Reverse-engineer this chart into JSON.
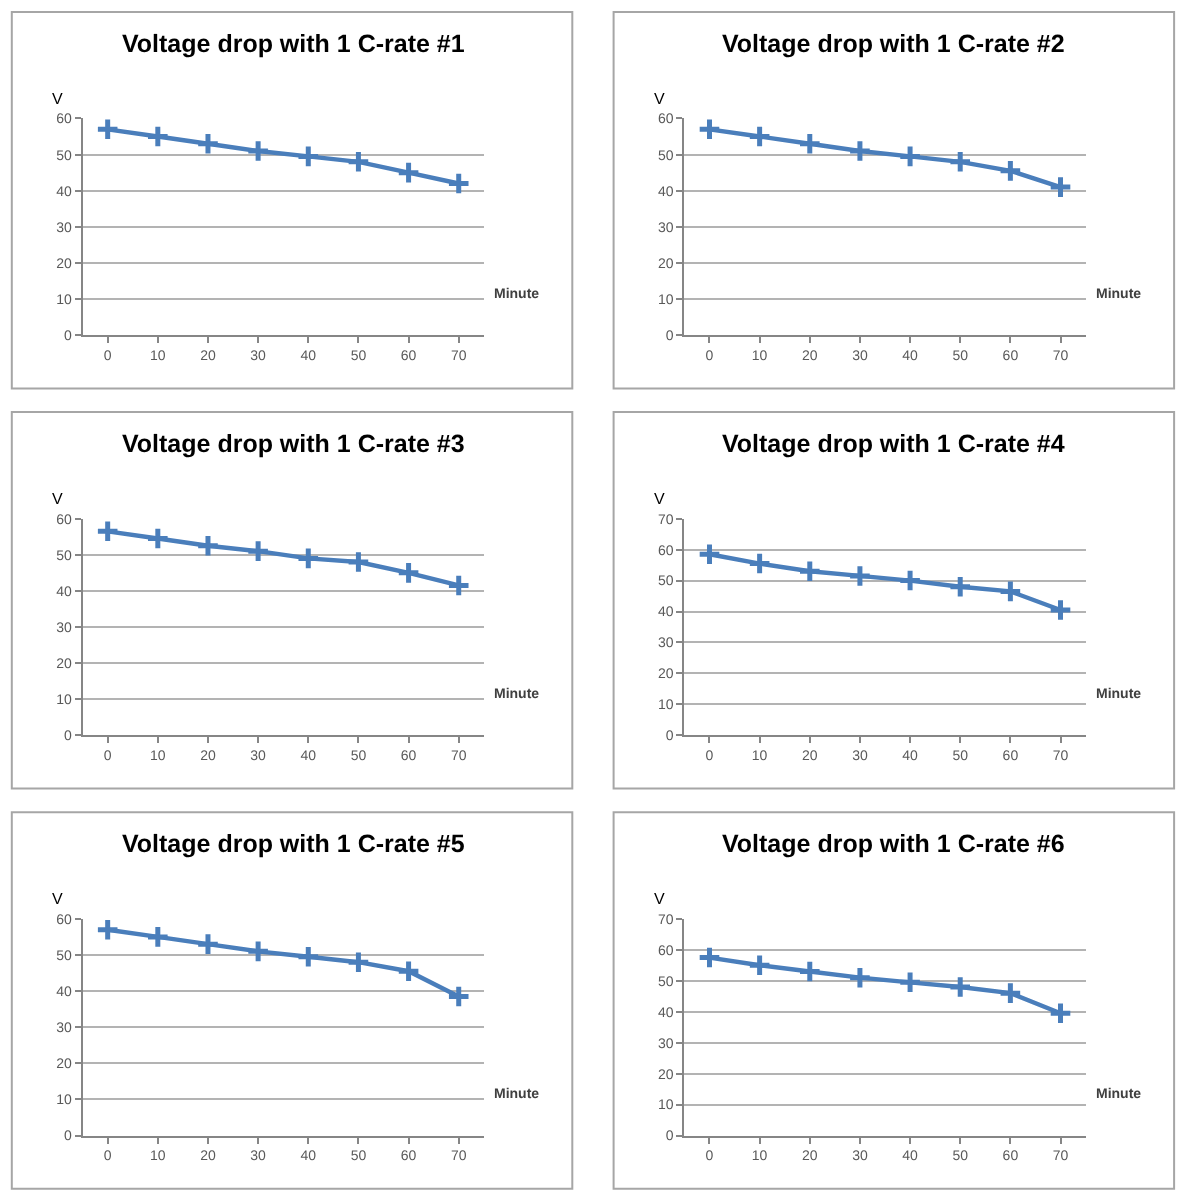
{
  "chart_data": [
    {
      "type": "line",
      "title": "Voltage drop with 1 C-rate #1",
      "xlabel": "Minute",
      "ylabel": "V",
      "categories": [
        "0",
        "10",
        "20",
        "30",
        "40",
        "50",
        "60",
        "70"
      ],
      "series": [
        {
          "color": "#4a7ebb",
          "values": [
            57,
            55,
            53,
            51,
            49.5,
            48,
            45,
            42
          ]
        }
      ],
      "ylim": [
        0,
        60
      ],
      "yticks": [
        0,
        10,
        20,
        30,
        40,
        50,
        60
      ],
      "grid": "y",
      "marker": "cross"
    },
    {
      "type": "line",
      "title": "Voltage drop with 1 C-rate #2",
      "xlabel": "Minute",
      "ylabel": "V",
      "categories": [
        "0",
        "10",
        "20",
        "30",
        "40",
        "50",
        "60",
        "70"
      ],
      "series": [
        {
          "color": "#4a7ebb",
          "values": [
            57,
            55,
            53,
            51,
            49.5,
            48,
            45.5,
            41
          ]
        }
      ],
      "ylim": [
        0,
        60
      ],
      "yticks": [
        0,
        10,
        20,
        30,
        40,
        50,
        60
      ],
      "grid": "y",
      "marker": "cross"
    },
    {
      "type": "line",
      "title": "Voltage drop with 1 C-rate #3",
      "xlabel": "Minute",
      "ylabel": "V",
      "categories": [
        "0",
        "10",
        "20",
        "30",
        "40",
        "50",
        "60",
        "70"
      ],
      "series": [
        {
          "color": "#4a7ebb",
          "values": [
            56.5,
            54.5,
            52.5,
            51,
            49,
            48,
            45,
            41.5
          ]
        }
      ],
      "ylim": [
        0,
        60
      ],
      "yticks": [
        0,
        10,
        20,
        30,
        40,
        50,
        60
      ],
      "grid": "y",
      "marker": "cross"
    },
    {
      "type": "line",
      "title": "Voltage drop with 1 C-rate #4",
      "xlabel": "Minute",
      "ylabel": "V",
      "categories": [
        "0",
        "10",
        "20",
        "30",
        "40",
        "50",
        "60",
        "70"
      ],
      "series": [
        {
          "color": "#4a7ebb",
          "values": [
            58.5,
            55.5,
            53,
            51.5,
            50,
            48,
            46.5,
            40.5
          ]
        }
      ],
      "ylim": [
        0,
        70
      ],
      "yticks": [
        0,
        10,
        20,
        30,
        40,
        50,
        60,
        70
      ],
      "grid": "y",
      "marker": "cross"
    },
    {
      "type": "line",
      "title": "Voltage drop with 1 C-rate #5",
      "xlabel": "Minute",
      "ylabel": "V",
      "categories": [
        "0",
        "10",
        "20",
        "30",
        "40",
        "50",
        "60",
        "70"
      ],
      "series": [
        {
          "color": "#4a7ebb",
          "values": [
            57,
            55,
            53,
            51,
            49.5,
            48,
            45.5,
            38.5
          ]
        }
      ],
      "ylim": [
        0,
        60
      ],
      "yticks": [
        0,
        10,
        20,
        30,
        40,
        50,
        60
      ],
      "grid": "y",
      "marker": "cross"
    },
    {
      "type": "line",
      "title": "Voltage drop with 1 C-rate #6",
      "xlabel": "Minute",
      "ylabel": "V",
      "categories": [
        "0",
        "10",
        "20",
        "30",
        "40",
        "50",
        "60",
        "70"
      ],
      "series": [
        {
          "color": "#4a7ebb",
          "values": [
            57.5,
            55,
            53,
            51,
            49.5,
            48,
            46,
            39.5
          ]
        }
      ],
      "ylim": [
        0,
        70
      ],
      "yticks": [
        0,
        10,
        20,
        30,
        40,
        50,
        60,
        70
      ],
      "grid": "y",
      "marker": "cross"
    }
  ]
}
